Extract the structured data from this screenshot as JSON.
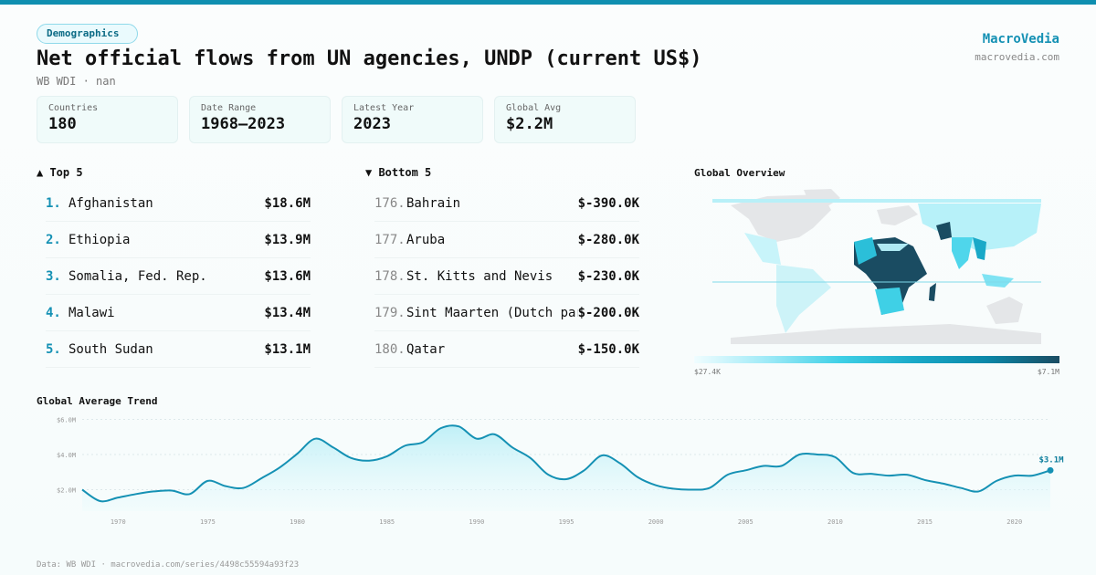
{
  "header": {
    "badge": "Demographics",
    "title": "Net official flows from UN agencies, UNDP (current US$)",
    "subtitle": "WB WDI · nan",
    "brand": "MacroVedia",
    "brand_url": "macrovedia.com"
  },
  "stats": [
    {
      "label": "Countries",
      "value": "180"
    },
    {
      "label": "Date Range",
      "value": "1968–2023"
    },
    {
      "label": "Latest Year",
      "value": "2023"
    },
    {
      "label": "Global Avg",
      "value": "$2.2M"
    }
  ],
  "top5": {
    "title": "▲ Top 5",
    "items": [
      {
        "rank": "1.",
        "name": "Afghanistan",
        "value": "$18.6M"
      },
      {
        "rank": "2.",
        "name": "Ethiopia",
        "value": "$13.9M"
      },
      {
        "rank": "3.",
        "name": "Somalia, Fed. Rep.",
        "value": "$13.6M"
      },
      {
        "rank": "4.",
        "name": "Malawi",
        "value": "$13.4M"
      },
      {
        "rank": "5.",
        "name": "South Sudan",
        "value": "$13.1M"
      }
    ]
  },
  "bottom5": {
    "title": "▼ Bottom 5",
    "items": [
      {
        "rank": "176.",
        "name": "Bahrain",
        "value": "$-390.0K"
      },
      {
        "rank": "177.",
        "name": "Aruba",
        "value": "$-280.0K"
      },
      {
        "rank": "178.",
        "name": "St. Kitts and Nevis",
        "value": "$-230.0K"
      },
      {
        "rank": "179.",
        "name": "Sint Maarten (Dutch part)",
        "value": "$-200.0K"
      },
      {
        "rank": "180.",
        "name": "Qatar",
        "value": "$-150.0K"
      }
    ]
  },
  "map": {
    "title": "Global Overview",
    "legend_min": "$27.4K",
    "legend_max": "$7.1M",
    "colors": {
      "low": "#f0fdff",
      "high": "#1a4c62",
      "nodata": "#e4e6e8"
    }
  },
  "footer": "Data: WB WDI · macrovedia.com/series/4498c55594a93f23",
  "chart_data": {
    "type": "area",
    "title": "Global Average Trend",
    "xlabel": "",
    "ylabel": "",
    "xlim": [
      1968,
      2022
    ],
    "ylim": [
      0,
      6
    ],
    "y_ticks": [
      {
        "v": 2,
        "label": "$2.0M"
      },
      {
        "v": 4,
        "label": "$4.0M"
      },
      {
        "v": 6,
        "label": "$6.0M"
      }
    ],
    "x_ticks": [
      1970,
      1975,
      1980,
      1985,
      1990,
      1995,
      2000,
      2005,
      2010,
      2015,
      2020
    ],
    "grid": true,
    "color": "#1591b4",
    "last_label": "$3.1M",
    "x": [
      1968,
      1969,
      1970,
      1971,
      1972,
      1973,
      1974,
      1975,
      1976,
      1977,
      1978,
      1979,
      1980,
      1981,
      1982,
      1983,
      1984,
      1985,
      1986,
      1987,
      1988,
      1989,
      1990,
      1991,
      1992,
      1993,
      1994,
      1995,
      1996,
      1997,
      1998,
      1999,
      2000,
      2001,
      2002,
      2003,
      2004,
      2005,
      2006,
      2007,
      2008,
      2009,
      2010,
      2011,
      2012,
      2013,
      2014,
      2015,
      2016,
      2017,
      2018,
      2019,
      2020,
      2021,
      2022
    ],
    "values": [
      2.0,
      1.35,
      1.55,
      1.75,
      1.9,
      1.95,
      1.75,
      2.5,
      2.2,
      2.1,
      2.65,
      3.25,
      4.05,
      4.9,
      4.4,
      3.8,
      3.65,
      3.9,
      4.5,
      4.7,
      5.5,
      5.6,
      4.9,
      5.15,
      4.4,
      3.8,
      2.85,
      2.6,
      3.1,
      3.95,
      3.5,
      2.7,
      2.25,
      2.05,
      2.0,
      2.1,
      2.85,
      3.1,
      3.35,
      3.35,
      4.0,
      4.0,
      3.85,
      2.95,
      2.9,
      2.8,
      2.85,
      2.55,
      2.35,
      2.1,
      1.9,
      2.5,
      2.8,
      2.8,
      3.1
    ]
  }
}
